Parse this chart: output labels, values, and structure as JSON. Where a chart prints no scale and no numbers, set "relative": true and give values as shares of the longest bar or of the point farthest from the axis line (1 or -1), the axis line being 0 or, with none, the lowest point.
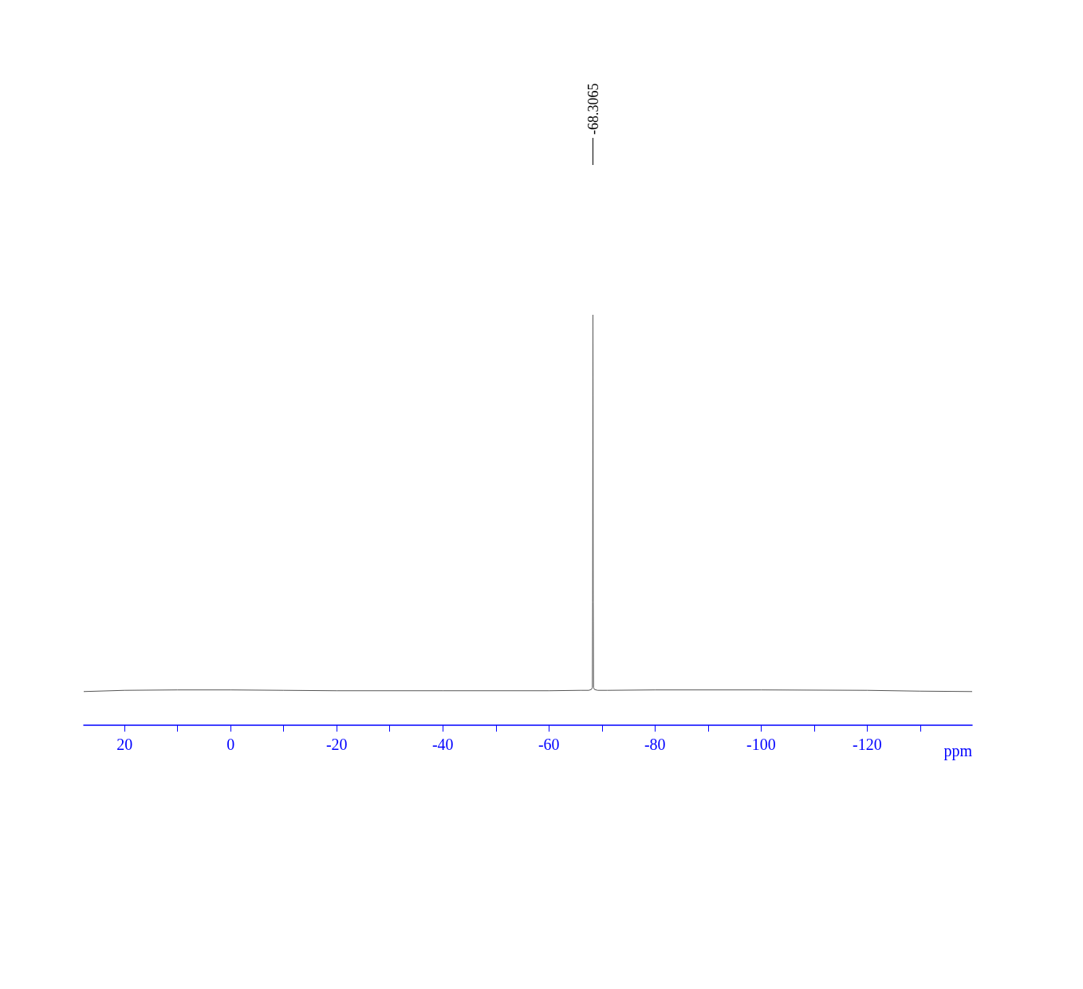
{
  "chart_data": {
    "type": "line",
    "relative": true,
    "xlabel": "ppm",
    "color": "#555555",
    "x": [
      27.7,
      20,
      10,
      0,
      -10,
      -20,
      -40,
      -60,
      -66,
      -67.5,
      -68.0,
      -68.2,
      -68.25,
      -68.3065,
      -68.36,
      -68.42,
      -68.6,
      -69.2,
      -71,
      -80,
      -100,
      -120,
      -130,
      -139.8
    ],
    "values": [
      0.082,
      0.085,
      0.086,
      0.086,
      0.085,
      0.084,
      0.084,
      0.084,
      0.085,
      0.085,
      0.087,
      0.092,
      0.3,
      1,
      0.3,
      0.092,
      0.087,
      0.085,
      0.085,
      0.086,
      0.086,
      0.085,
      0.083,
      0.082
    ],
    "xlim": [
      27.7,
      -139.8
    ],
    "xticks": [
      20,
      {
        "value": 10,
        "label": null
      },
      0,
      {
        "value": -10,
        "label": null
      },
      -20,
      {
        "value": -30,
        "label": null
      },
      -40,
      {
        "value": -50,
        "label": null
      },
      -60,
      {
        "value": -70,
        "label": null
      },
      -80,
      {
        "value": -90,
        "label": null
      },
      -100,
      {
        "value": -110,
        "label": null
      },
      -120,
      {
        "value": -130,
        "label": null
      }
    ],
    "grid": false,
    "tick_labels": "x",
    "marker": "none",
    "line_style": "solid",
    "annotations": [
      {
        "text": "-68.3065",
        "x": -68.3065
      }
    ]
  }
}
